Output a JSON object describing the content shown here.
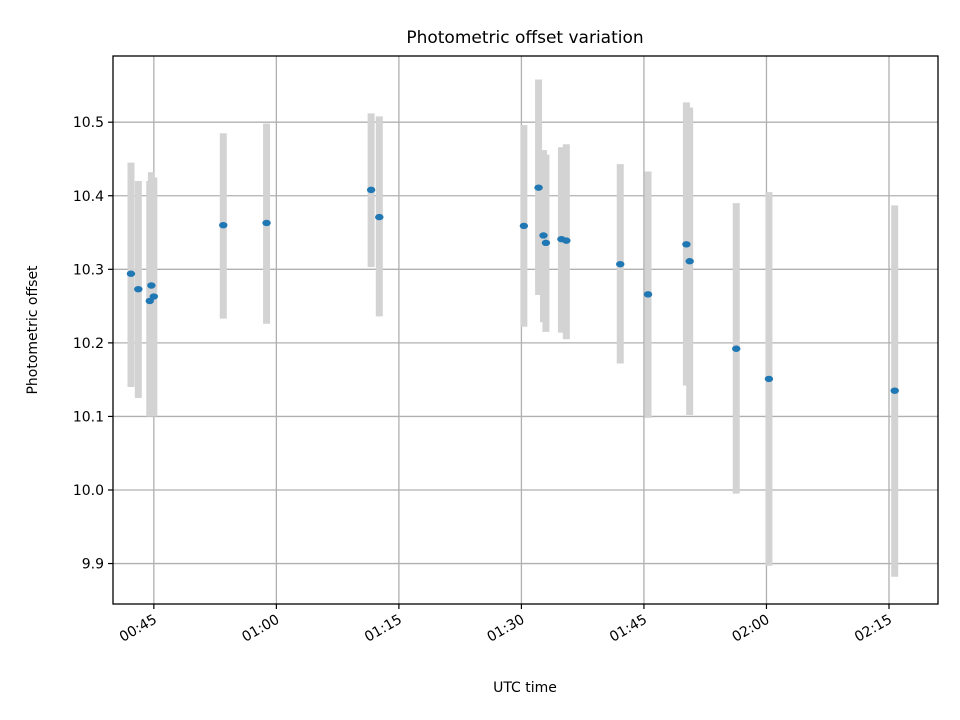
{
  "chart_data": {
    "type": "scatter",
    "title": "Photometric offset variation",
    "xlabel": "UTC time",
    "ylabel": "Photometric offset",
    "xlim": [
      "00:40",
      "02:21"
    ],
    "ylim": [
      9.845,
      10.59
    ],
    "x_ticks": [
      "00:45",
      "01:00",
      "01:15",
      "01:30",
      "01:45",
      "02:00",
      "02:15"
    ],
    "y_ticks": [
      9.9,
      10.0,
      10.1,
      10.2,
      10.3,
      10.4,
      10.5
    ],
    "grid": true,
    "colors": {
      "point": "#1f77b4",
      "errorbar": "#d3d3d3"
    },
    "points": [
      {
        "x": "00:42:12",
        "y": 10.294,
        "low": 10.14,
        "high": 10.445
      },
      {
        "x": "00:43:06",
        "y": 10.273,
        "low": 10.125,
        "high": 10.42
      },
      {
        "x": "00:44:30",
        "y": 10.257,
        "low": 10.1,
        "high": 10.42
      },
      {
        "x": "00:44:42",
        "y": 10.278,
        "low": 10.1,
        "high": 10.432
      },
      {
        "x": "00:45:00",
        "y": 10.263,
        "low": 10.1,
        "high": 10.425
      },
      {
        "x": "00:53:30",
        "y": 10.36,
        "low": 10.233,
        "high": 10.485
      },
      {
        "x": "00:58:48",
        "y": 10.363,
        "low": 10.226,
        "high": 10.498
      },
      {
        "x": "01:11:36",
        "y": 10.408,
        "low": 10.303,
        "high": 10.512
      },
      {
        "x": "01:12:36",
        "y": 10.371,
        "low": 10.236,
        "high": 10.508
      },
      {
        "x": "01:30:18",
        "y": 10.359,
        "low": 10.222,
        "high": 10.496
      },
      {
        "x": "01:32:06",
        "y": 10.411,
        "low": 10.265,
        "high": 10.558
      },
      {
        "x": "01:32:42",
        "y": 10.346,
        "low": 10.228,
        "high": 10.462
      },
      {
        "x": "01:33:00",
        "y": 10.336,
        "low": 10.215,
        "high": 10.456
      },
      {
        "x": "01:34:54",
        "y": 10.341,
        "low": 10.214,
        "high": 10.466
      },
      {
        "x": "01:35:30",
        "y": 10.339,
        "low": 10.205,
        "high": 10.47
      },
      {
        "x": "01:42:06",
        "y": 10.307,
        "low": 10.172,
        "high": 10.443
      },
      {
        "x": "01:45:30",
        "y": 10.266,
        "low": 10.098,
        "high": 10.433
      },
      {
        "x": "01:50:12",
        "y": 10.334,
        "low": 10.142,
        "high": 10.527
      },
      {
        "x": "01:50:36",
        "y": 10.311,
        "low": 10.102,
        "high": 10.52
      },
      {
        "x": "01:56:18",
        "y": 10.192,
        "low": 9.995,
        "high": 10.39
      },
      {
        "x": "02:00:18",
        "y": 10.151,
        "low": 9.897,
        "high": 10.405
      },
      {
        "x": "02:15:42",
        "y": 10.135,
        "low": 9.882,
        "high": 10.387
      }
    ]
  }
}
